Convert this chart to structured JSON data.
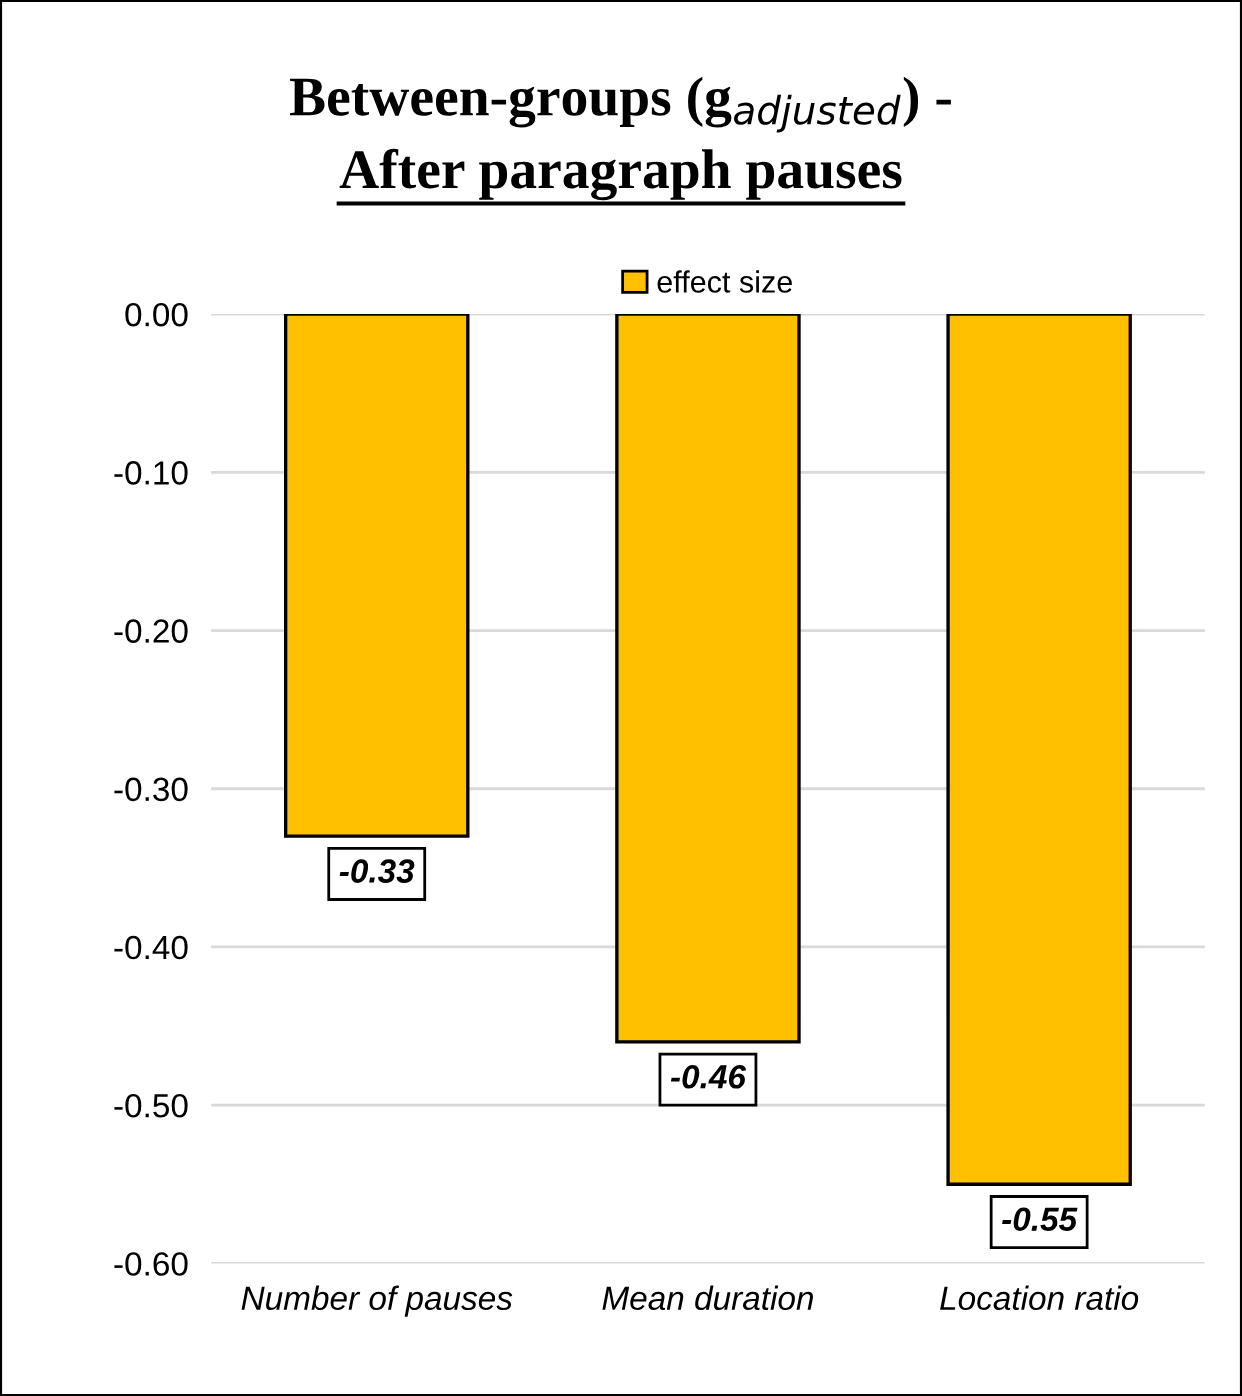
{
  "chart_data": {
    "type": "bar",
    "title": "Between-groups (g$_{adjusted}$) -",
    "subtitle": "After paragraph pauses",
    "categories": [
      "Number of pauses",
      "Mean duration",
      "Location ratio"
    ],
    "series": [
      {
        "name": "effect size",
        "color": "#ffc000",
        "values": [
          -0.33,
          -0.46,
          -0.55
        ]
      }
    ],
    "ylim": [
      -0.6,
      0
    ],
    "yticks": [
      {
        "value": 0,
        "label": "0.00"
      },
      {
        "value": -0.1,
        "label": "-0.10"
      },
      {
        "value": -0.2,
        "label": "-0.20"
      },
      {
        "value": -0.3,
        "label": "-0.30"
      },
      {
        "value": -0.4,
        "label": "-0.40"
      },
      {
        "value": -0.5,
        "label": "-0.50"
      },
      {
        "value": -0.6,
        "label": "-0.60"
      }
    ],
    "grid": "y",
    "legend": "top",
    "data_labels": true
  }
}
